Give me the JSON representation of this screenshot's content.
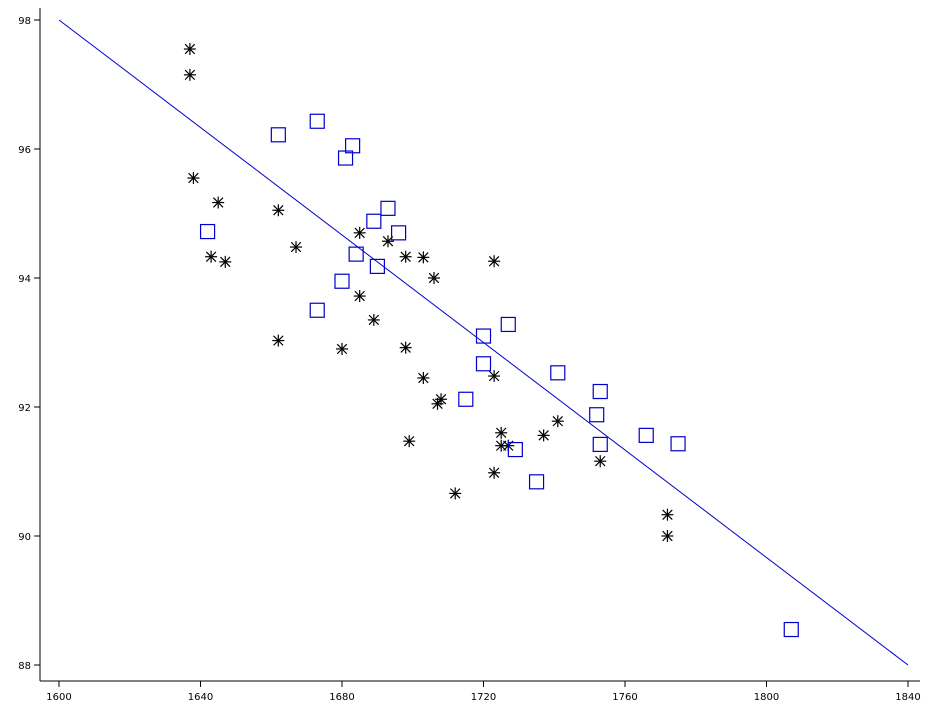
{
  "colors": {
    "axis": "#000000",
    "fit_line": "#0000cc",
    "star": "#000000",
    "square": "#0000cc",
    "background": "#ffffff"
  },
  "chart_data": {
    "type": "scatter",
    "title": "",
    "xlabel": "",
    "ylabel": "",
    "xlim": [
      1600,
      1840
    ],
    "ylim": [
      88,
      98
    ],
    "grid": false,
    "x_ticks": [
      "1600",
      "1640",
      "1680",
      "1720",
      "1760",
      "1800",
      "1840"
    ],
    "y_ticks": [
      "88",
      "90",
      "92",
      "94",
      "96",
      "98"
    ],
    "fit_line": {
      "x": [
        1600,
        1840
      ],
      "y": [
        98.0,
        88.0
      ]
    },
    "series": [
      {
        "marker": "star",
        "points": [
          [
            1637,
            97.55
          ],
          [
            1637,
            97.15
          ],
          [
            1638,
            95.55
          ],
          [
            1645,
            95.17
          ],
          [
            1643,
            94.33
          ],
          [
            1647,
            94.25
          ],
          [
            1662,
            95.05
          ],
          [
            1667,
            94.48
          ],
          [
            1662,
            93.03
          ],
          [
            1680,
            92.9
          ],
          [
            1685,
            94.7
          ],
          [
            1685,
            93.72
          ],
          [
            1689,
            93.35
          ],
          [
            1693,
            94.57
          ],
          [
            1698,
            94.33
          ],
          [
            1703,
            94.32
          ],
          [
            1706,
            94.0
          ],
          [
            1698,
            92.92
          ],
          [
            1703,
            92.45
          ],
          [
            1707,
            92.05
          ],
          [
            1708,
            92.12
          ],
          [
            1699,
            91.47
          ],
          [
            1712,
            90.66
          ],
          [
            1723,
            94.26
          ],
          [
            1723,
            92.48
          ],
          [
            1723,
            90.98
          ],
          [
            1725,
            91.6
          ],
          [
            1725,
            91.4
          ],
          [
            1727,
            91.4
          ],
          [
            1737,
            91.56
          ],
          [
            1741,
            91.78
          ],
          [
            1753,
            91.16
          ],
          [
            1772,
            90.33
          ],
          [
            1772,
            90.0
          ]
        ]
      },
      {
        "marker": "square",
        "points": [
          [
            1642,
            94.72
          ],
          [
            1662,
            96.22
          ],
          [
            1673,
            96.43
          ],
          [
            1673,
            93.5
          ],
          [
            1681,
            95.86
          ],
          [
            1683,
            96.05
          ],
          [
            1680,
            93.95
          ],
          [
            1684,
            94.37
          ],
          [
            1689,
            94.88
          ],
          [
            1693,
            95.08
          ],
          [
            1696,
            94.7
          ],
          [
            1690,
            94.18
          ],
          [
            1715,
            92.12
          ],
          [
            1720,
            93.1
          ],
          [
            1720,
            92.67
          ],
          [
            1727,
            93.28
          ],
          [
            1729,
            91.34
          ],
          [
            1735,
            90.84
          ],
          [
            1741,
            92.53
          ],
          [
            1752,
            91.88
          ],
          [
            1753,
            92.24
          ],
          [
            1753,
            91.42
          ],
          [
            1766,
            91.56
          ],
          [
            1775,
            91.43
          ],
          [
            1807,
            88.55
          ]
        ]
      }
    ]
  }
}
